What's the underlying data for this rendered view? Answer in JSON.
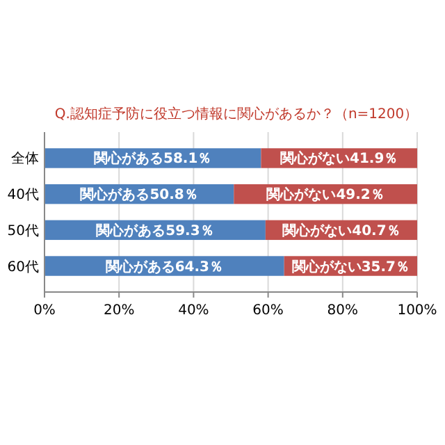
{
  "chart_data": {
    "type": "bar",
    "orientation": "horizontal",
    "stacked": true,
    "title": "Q.認知症予防に役立つ情報に関心があるか？（n=1200）",
    "categories": [
      "全体",
      "40代",
      "50代",
      "60代"
    ],
    "series": [
      {
        "color": "#4f81bd",
        "values": [
          58.1,
          50.8,
          59.3,
          64.3
        ],
        "value_labels": [
          "関心がある58.1％",
          "関心がある50.8％",
          "関心がある59.3％",
          "関心がある64.3％"
        ]
      },
      {
        "color": "#c0504d",
        "values": [
          41.9,
          49.2,
          40.7,
          35.7
        ],
        "value_labels": [
          "関心がない41.9％",
          "関心がない49.2％",
          "関心がない40.7％",
          "関心がない35.7％"
        ]
      }
    ],
    "xlim": [
      0,
      100
    ],
    "xticks": [
      {
        "value": 0,
        "label": "0%"
      },
      {
        "value": 20,
        "label": "20%"
      },
      {
        "value": 40,
        "label": "40%"
      },
      {
        "value": 60,
        "label": "60%"
      },
      {
        "value": 80,
        "label": "80%"
      },
      {
        "value": 100,
        "label": "100%"
      }
    ],
    "grid": "x"
  }
}
